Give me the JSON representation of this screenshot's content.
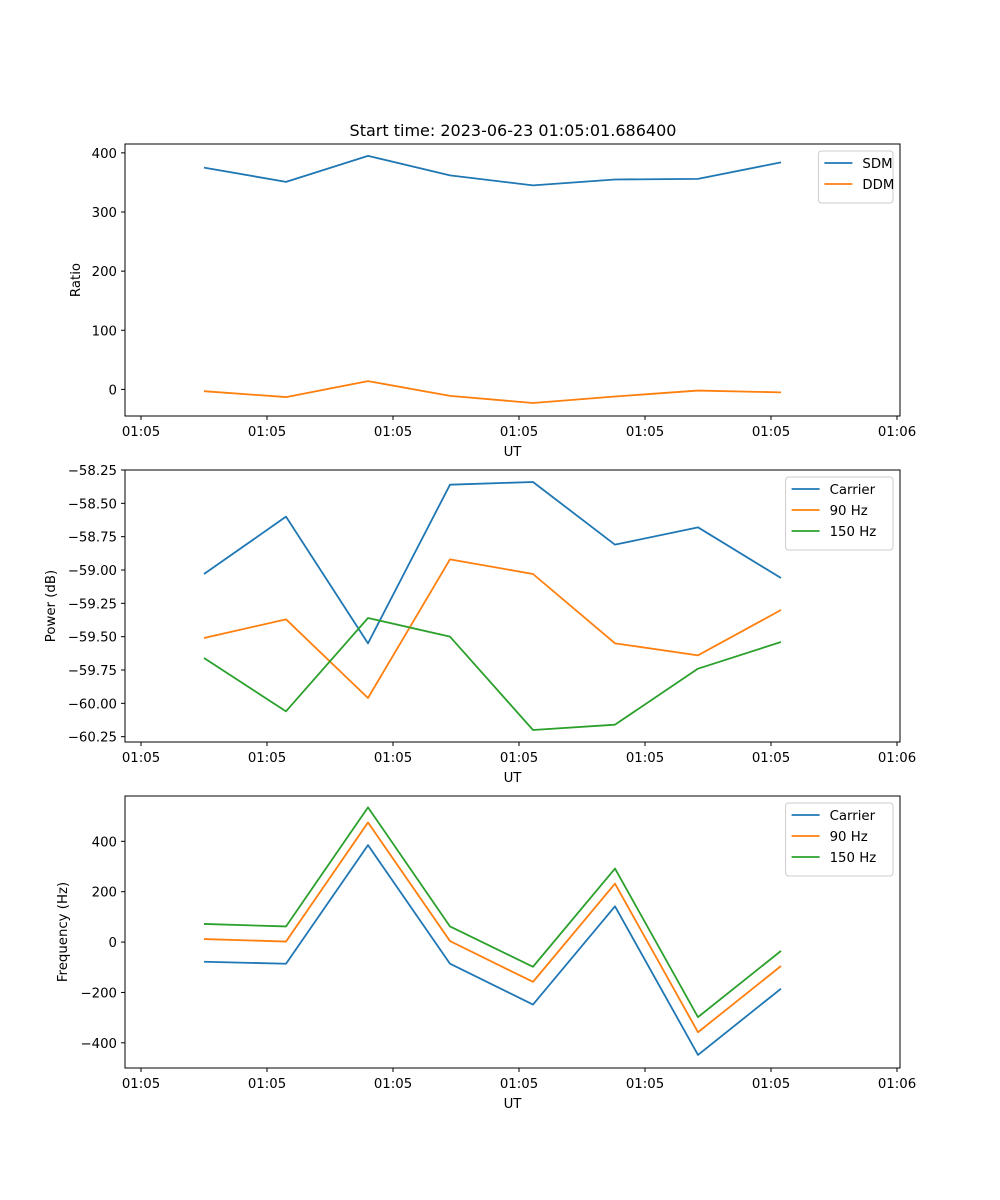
{
  "figure": {
    "title": "Start time: 2023-06-23 01:05:01.686400"
  },
  "chart_data": [
    {
      "type": "line",
      "xlabel": "UT",
      "ylabel": "Ratio",
      "xtick_labels": [
        "01:05",
        "01:05",
        "01:05",
        "01:05",
        "01:05",
        "01:05",
        "01:06"
      ],
      "ylim": [
        -45,
        415
      ],
      "yticks": [
        0,
        100,
        200,
        300,
        400
      ],
      "ytick_labels": [
        "0",
        "100",
        "200",
        "300",
        "400"
      ],
      "legend_position": "top-right",
      "grid": false,
      "series": [
        {
          "name": "SDM",
          "color": "#1f77b4",
          "values": [
            375,
            351,
            395,
            362,
            345,
            355,
            356,
            384
          ]
        },
        {
          "name": "DDM",
          "color": "#ff7f0e",
          "values": [
            -3,
            -13,
            14,
            -11,
            -23,
            -12,
            -2,
            -5
          ]
        }
      ]
    },
    {
      "type": "line",
      "xlabel": "UT",
      "ylabel": "Power (dB)",
      "xtick_labels": [
        "01:05",
        "01:05",
        "01:05",
        "01:05",
        "01:05",
        "01:05",
        "01:06"
      ],
      "ylim": [
        -60.29,
        -58.25
      ],
      "yticks": [
        -58.25,
        -58.5,
        -58.75,
        -59.0,
        -59.25,
        -59.5,
        -59.75,
        -60.0,
        -60.25
      ],
      "ytick_labels": [
        "−58.25",
        "−58.50",
        "−58.75",
        "−59.00",
        "−59.25",
        "−59.50",
        "−59.75",
        "−60.00",
        "−60.25"
      ],
      "legend_position": "top-right",
      "grid": false,
      "series": [
        {
          "name": "Carrier",
          "color": "#1f77b4",
          "values": [
            -59.03,
            -58.6,
            -59.55,
            -58.36,
            -58.34,
            -58.81,
            -58.68,
            -59.06
          ]
        },
        {
          "name": "90 Hz",
          "color": "#ff7f0e",
          "values": [
            -59.51,
            -59.37,
            -59.96,
            -58.92,
            -59.03,
            -59.55,
            -59.64,
            -59.3
          ]
        },
        {
          "name": "150 Hz",
          "color": "#2ca02c",
          "values": [
            -59.66,
            -60.06,
            -59.36,
            -59.5,
            -60.2,
            -60.16,
            -59.74,
            -59.54
          ]
        }
      ]
    },
    {
      "type": "line",
      "xlabel": "UT",
      "ylabel": "Frequency (Hz)",
      "xtick_labels": [
        "01:05",
        "01:05",
        "01:05",
        "01:05",
        "01:05",
        "01:05",
        "01:06"
      ],
      "ylim": [
        -500,
        580
      ],
      "yticks": [
        -400,
        -200,
        0,
        200,
        400
      ],
      "ytick_labels": [
        "−400",
        "−200",
        "0",
        "200",
        "400"
      ],
      "legend_position": "top-right",
      "grid": false,
      "series": [
        {
          "name": "Carrier",
          "color": "#1f77b4",
          "values": [
            -78,
            -86,
            385,
            -86,
            -248,
            142,
            -448,
            -185
          ]
        },
        {
          "name": "90 Hz",
          "color": "#ff7f0e",
          "values": [
            12,
            2,
            475,
            4,
            -158,
            232,
            -358,
            -95
          ]
        },
        {
          "name": "150 Hz",
          "color": "#2ca02c",
          "values": [
            72,
            62,
            535,
            62,
            -98,
            292,
            -298,
            -35
          ]
        }
      ]
    }
  ]
}
